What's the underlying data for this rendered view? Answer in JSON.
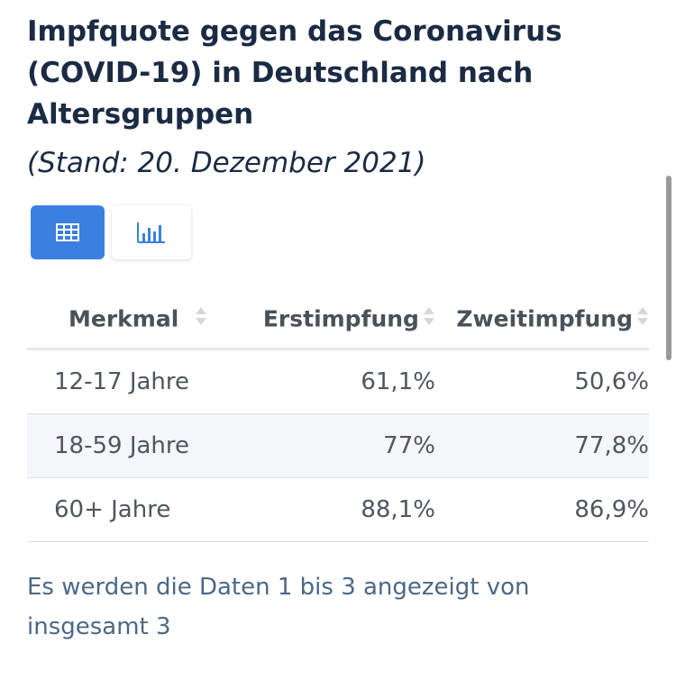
{
  "chart_data": {
    "type": "table",
    "title": "Impfquote gegen das Coronavirus (COVID-19) in Deutschland nach Altersgruppen",
    "subtitle": "(Stand: 20. Dezember 2021)",
    "columns": [
      "Merkmal",
      "Erstimpfung",
      "Zweitimpfung"
    ],
    "rows": [
      {
        "label": "12-17 Jahre",
        "first": "61,1%",
        "second": "50,6%"
      },
      {
        "label": "18-59 Jahre",
        "first": "77%",
        "second": "77,8%"
      },
      {
        "label": "60+ Jahre",
        "first": "88,1%",
        "second": "86,9%"
      }
    ],
    "categories": [
      "12-17 Jahre",
      "18-59 Jahre",
      "60+ Jahre"
    ],
    "series": [
      {
        "name": "Erstimpfung",
        "values": [
          61.1,
          77,
          88.1
        ]
      },
      {
        "name": "Zweitimpfung",
        "values": [
          50.6,
          77.8,
          86.9
        ]
      }
    ]
  },
  "view_toggle": {
    "active": "table",
    "table_icon": "table-icon",
    "chart_icon": "bar-chart-icon",
    "active_color": "#3b80e0"
  },
  "footer_text": "Es werden die Daten 1 bis 3 angezeigt von insgesamt 3"
}
